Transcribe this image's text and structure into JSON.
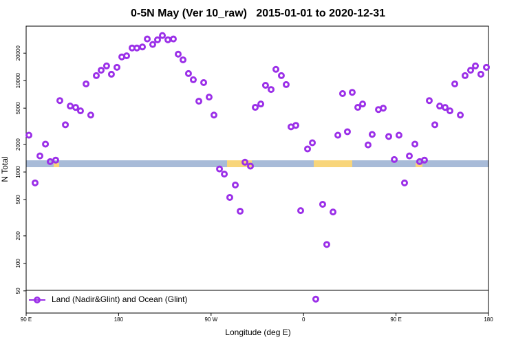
{
  "chart_data": {
    "type": "scatter",
    "title": "0-5N May (Ver 10_raw)   2015-01-01 to 2020-12-31",
    "x_label": "Longitude (deg E)",
    "y_label": "N Total",
    "log_y": true,
    "legend": "lower left",
    "xlim": [
      90,
      540
    ],
    "ylim": [
      28.6,
      39500
    ],
    "xticks": [
      {
        "value": 90,
        "label": "90 E"
      },
      180,
      {
        "value": 270,
        "label": "90 W"
      },
      {
        "value": 360,
        "label": "0"
      },
      {
        "value": 450,
        "label": "90 E"
      },
      {
        "value": 540,
        "label": "180"
      }
    ],
    "yticks": [
      50,
      100,
      200,
      500,
      1000,
      2000,
      5000,
      10000,
      20000
    ],
    "series": [
      {
        "name": "Land (Nadir&Glint) and Ocean (Glint)",
        "color": "#9b30e8",
        "x": [
          92.7,
          98.7,
          103.4,
          108.8,
          113.4,
          118.8,
          122.8,
          128.2,
          132.9,
          138.2,
          142.9,
          148.3,
          152.9,
          158.3,
          163,
          168.3,
          173,
          178.4,
          183.1,
          187.8,
          193.1,
          197.8,
          203.2,
          207.9,
          213.2,
          217.9,
          222.6,
          228,
          233.3,
          238,
          242.7,
          248,
          252.7,
          258.1,
          262.8,
          268.1,
          272.8,
          278.2,
          282.9,
          288.2,
          293.6,
          298.3,
          303,
          308.3,
          313,
          318.4,
          323,
          328.4,
          333.1,
          338.4,
          343.1,
          347.8,
          352.5,
          357.2,
          363.9,
          368.6,
          371.9,
          378.6,
          382.6,
          388.7,
          393.4,
          398,
          402.7,
          407.4,
          412.8,
          417.5,
          422.8,
          426.8,
          432.9,
          437.6,
          442.9,
          448.3,
          452.9,
          458.3,
          463,
          468.4,
          473,
          477.7,
          482.4,
          487.8,
          492.5,
          497.8,
          502.5,
          507.2,
          512.6,
          517.2,
          522.6,
          527.3,
          532.6,
          538
        ],
        "values": [
          2530,
          760,
          1500,
          2020,
          1300,
          1350,
          6050,
          3290,
          5270,
          5090,
          4670,
          9210,
          4200,
          11350,
          13000,
          14500,
          11750,
          14000,
          18200,
          18700,
          22800,
          22800,
          23400,
          28600,
          24900,
          28000,
          31200,
          28000,
          28600,
          19500,
          16900,
          11970,
          10230,
          5960,
          9530,
          6610,
          4200,
          1080,
          950,
          527,
          721,
          372,
          1280,
          1160,
          5100,
          5550,
          8890,
          8000,
          13300,
          11350,
          9060,
          3120,
          3240,
          378,
          1790,
          2090,
          40.6,
          443,
          161,
          365,
          2530,
          7220,
          2760,
          7450,
          5100,
          5550,
          1980,
          2580,
          4830,
          5000,
          2450,
          1370,
          2530,
          760,
          1500,
          2020,
          1300,
          1350,
          6050,
          3290,
          5270,
          5090,
          4670,
          9210,
          4200,
          11350,
          13000,
          14500,
          11750,
          14000
        ]
      }
    ]
  }
}
